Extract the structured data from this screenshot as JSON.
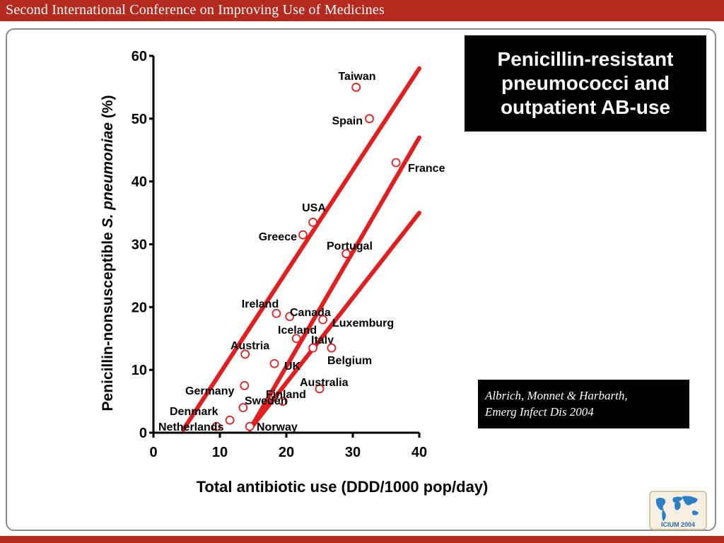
{
  "header": {
    "title": "Second International Conference on Improving Use of Medicines"
  },
  "title_box": {
    "text": "Penicillin-resistant pneumococci and outpatient AB-use"
  },
  "citation": {
    "line1": "Albrich, Monnet & Harbarth,",
    "line2": "Emerg Infect Dis 2004"
  },
  "logo": {
    "text": "ICIUM 2004",
    "icon": "world-map-icon"
  },
  "colors": {
    "accent": "#b42a1e",
    "lines": "#e41e1e",
    "markers": "#e41e1e",
    "box_bg": "#000000"
  },
  "chart_data": {
    "type": "scatter",
    "title": "Penicillin-resistant pneumococci and outpatient AB-use",
    "xlabel": "Total antibiotic use (DDD/1000 pop/day)",
    "ylabel_prefix": "Penicillin-nonsusceptible ",
    "ylabel_italic": "S. pneumoniae",
    "ylabel_suffix": " (%)",
    "xlim": [
      0,
      40
    ],
    "ylim": [
      0,
      60
    ],
    "xticks": [
      0,
      10,
      20,
      30,
      40
    ],
    "yticks": [
      0,
      10,
      20,
      30,
      40,
      50,
      60
    ],
    "points": [
      {
        "label": "Taiwan",
        "x": 30.5,
        "y": 55
      },
      {
        "label": "Spain",
        "x": 32.5,
        "y": 50
      },
      {
        "label": "France",
        "x": 36.5,
        "y": 43
      },
      {
        "label": "USA",
        "x": 24,
        "y": 33.5
      },
      {
        "label": "Greece",
        "x": 22.5,
        "y": 31.5
      },
      {
        "label": "Portugal",
        "x": 29,
        "y": 28.5
      },
      {
        "label": "Ireland",
        "x": 18.5,
        "y": 19
      },
      {
        "label": "Canada",
        "x": 20.5,
        "y": 18.5
      },
      {
        "label": "Luxemburg",
        "x": 25.5,
        "y": 18
      },
      {
        "label": "Iceland",
        "x": 21.5,
        "y": 15
      },
      {
        "label": "Italy",
        "x": 24,
        "y": 13.5
      },
      {
        "label": "Belgium",
        "x": 26.8,
        "y": 13.5
      },
      {
        "label": "Austria",
        "x": 13.8,
        "y": 12.5
      },
      {
        "label": "UK",
        "x": 18.2,
        "y": 11
      },
      {
        "label": "Australia",
        "x": 25,
        "y": 7
      },
      {
        "label": "Germany",
        "x": 13.7,
        "y": 7.5
      },
      {
        "label": "Finland",
        "x": 19.5,
        "y": 5
      },
      {
        "label": "Sweden",
        "x": 13.5,
        "y": 4
      },
      {
        "label": "Denmark",
        "x": 11.5,
        "y": 2
      },
      {
        "label": "Netherlands",
        "x": 9.5,
        "y": 1
      },
      {
        "label": "Norway",
        "x": 14.5,
        "y": 1
      }
    ],
    "trend_lines": [
      {
        "x1": 4.5,
        "y1": 0.5,
        "x2": 40,
        "y2": 58
      },
      {
        "x1": 14.5,
        "y1": 0.5,
        "x2": 40,
        "y2": 47
      },
      {
        "x1": 14.5,
        "y1": 0.5,
        "x2": 40,
        "y2": 35
      }
    ],
    "grid": false,
    "legend": "none"
  }
}
